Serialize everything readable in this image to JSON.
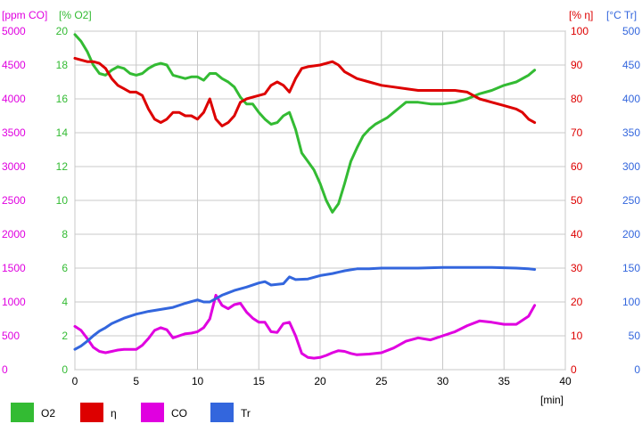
{
  "chart_data": {
    "type": "line",
    "xlabel": "[min]",
    "x_ticks": [
      "0",
      "5",
      "10",
      "15",
      "20",
      "25",
      "30",
      "35",
      "40"
    ],
    "xlim": [
      0,
      40
    ],
    "grid": true,
    "legend_position": "bottom",
    "axes": [
      {
        "id": "co",
        "label": "[ppm CO]",
        "side": "left-outer",
        "color": "#e000e0",
        "min": 0,
        "max": 5000,
        "ticks": [
          "0",
          "500",
          "1000",
          "1500",
          "2000",
          "2500",
          "3000",
          "3500",
          "4000",
          "4500",
          "5000"
        ]
      },
      {
        "id": "o2",
        "label": "[% O2]",
        "side": "left-inner",
        "color": "#33bb33",
        "min": 0,
        "max": 20,
        "ticks": [
          "0",
          "2",
          "4",
          "6",
          "8",
          "10",
          "12",
          "14",
          "16",
          "18",
          "20"
        ]
      },
      {
        "id": "eta",
        "label": "[% η]",
        "side": "right-inner",
        "color": "#dd0000",
        "min": 0,
        "max": 100,
        "ticks": [
          "0",
          "10",
          "20",
          "30",
          "40",
          "50",
          "60",
          "70",
          "80",
          "90",
          "100"
        ]
      },
      {
        "id": "tr",
        "label": "[°C Tr]",
        "side": "right-outer",
        "color": "#3366dd",
        "min": 0,
        "max": 500,
        "ticks": [
          "0",
          "50",
          "100",
          "150",
          "200",
          "250",
          "300",
          "350",
          "400",
          "450",
          "500"
        ]
      }
    ],
    "series": [
      {
        "name": "O2",
        "axis": "o2",
        "color": "#33bb33",
        "points": [
          [
            0,
            19.8
          ],
          [
            0.5,
            19.4
          ],
          [
            1,
            18.8
          ],
          [
            1.5,
            18.0
          ],
          [
            2,
            17.5
          ],
          [
            2.5,
            17.4
          ],
          [
            3,
            17.7
          ],
          [
            3.5,
            17.9
          ],
          [
            4,
            17.8
          ],
          [
            4.5,
            17.5
          ],
          [
            5,
            17.4
          ],
          [
            5.5,
            17.5
          ],
          [
            6,
            17.8
          ],
          [
            6.5,
            18.0
          ],
          [
            7,
            18.1
          ],
          [
            7.5,
            18.0
          ],
          [
            8,
            17.4
          ],
          [
            8.5,
            17.3
          ],
          [
            9,
            17.2
          ],
          [
            9.5,
            17.3
          ],
          [
            10,
            17.3
          ],
          [
            10.5,
            17.1
          ],
          [
            11,
            17.5
          ],
          [
            11.5,
            17.5
          ],
          [
            12,
            17.2
          ],
          [
            12.5,
            17.0
          ],
          [
            13,
            16.7
          ],
          [
            13.5,
            16.1
          ],
          [
            14,
            15.7
          ],
          [
            14.5,
            15.7
          ],
          [
            15,
            15.2
          ],
          [
            15.5,
            14.8
          ],
          [
            16,
            14.5
          ],
          [
            16.5,
            14.6
          ],
          [
            17,
            15.0
          ],
          [
            17.5,
            15.2
          ],
          [
            18,
            14.2
          ],
          [
            18.5,
            12.8
          ],
          [
            19,
            12.3
          ],
          [
            19.5,
            11.8
          ],
          [
            20,
            11.0
          ],
          [
            20.5,
            10.0
          ],
          [
            21,
            9.3
          ],
          [
            21.5,
            9.8
          ],
          [
            22,
            11.0
          ],
          [
            22.5,
            12.3
          ],
          [
            23,
            13.1
          ],
          [
            23.5,
            13.8
          ],
          [
            24,
            14.2
          ],
          [
            24.5,
            14.5
          ],
          [
            25,
            14.7
          ],
          [
            25.5,
            14.9
          ],
          [
            26,
            15.2
          ],
          [
            26.5,
            15.5
          ],
          [
            27,
            15.8
          ],
          [
            28,
            15.8
          ],
          [
            29,
            15.7
          ],
          [
            30,
            15.7
          ],
          [
            31,
            15.8
          ],
          [
            32,
            16.0
          ],
          [
            33,
            16.3
          ],
          [
            34,
            16.5
          ],
          [
            35,
            16.8
          ],
          [
            36,
            17.0
          ],
          [
            37,
            17.4
          ],
          [
            37.5,
            17.7
          ]
        ]
      },
      {
        "name": "η",
        "axis": "eta",
        "color": "#dd0000",
        "points": [
          [
            0,
            92
          ],
          [
            0.5,
            91.5
          ],
          [
            1,
            91
          ],
          [
            1.5,
            91
          ],
          [
            2,
            90.5
          ],
          [
            2.5,
            89
          ],
          [
            3,
            86
          ],
          [
            3.5,
            84
          ],
          [
            4,
            83
          ],
          [
            4.5,
            82
          ],
          [
            5,
            82
          ],
          [
            5.5,
            81
          ],
          [
            6,
            77
          ],
          [
            6.5,
            74
          ],
          [
            7,
            73
          ],
          [
            7.5,
            74
          ],
          [
            8,
            76
          ],
          [
            8.5,
            76
          ],
          [
            9,
            75
          ],
          [
            9.5,
            75
          ],
          [
            10,
            74
          ],
          [
            10.5,
            76
          ],
          [
            11,
            80
          ],
          [
            11.5,
            74
          ],
          [
            12,
            72
          ],
          [
            12.5,
            73
          ],
          [
            13,
            75
          ],
          [
            13.5,
            79
          ],
          [
            14,
            80
          ],
          [
            14.5,
            80.5
          ],
          [
            15,
            81
          ],
          [
            15.5,
            81.5
          ],
          [
            16,
            84
          ],
          [
            16.5,
            85
          ],
          [
            17,
            84
          ],
          [
            17.5,
            82
          ],
          [
            18,
            86
          ],
          [
            18.5,
            89
          ],
          [
            19,
            89.5
          ],
          [
            20,
            90
          ],
          [
            21,
            91
          ],
          [
            21.5,
            90
          ],
          [
            22,
            88
          ],
          [
            23,
            86
          ],
          [
            24,
            85
          ],
          [
            25,
            84
          ],
          [
            26,
            83.5
          ],
          [
            27,
            83
          ],
          [
            28,
            82.5
          ],
          [
            29,
            82.5
          ],
          [
            30,
            82.5
          ],
          [
            31,
            82.5
          ],
          [
            32,
            82
          ],
          [
            33,
            80
          ],
          [
            34,
            79
          ],
          [
            35,
            78
          ],
          [
            36,
            77
          ],
          [
            36.5,
            76
          ],
          [
            37,
            74
          ],
          [
            37.5,
            73
          ]
        ]
      },
      {
        "name": "CO",
        "axis": "co",
        "color": "#e000e0",
        "points": [
          [
            0,
            640
          ],
          [
            0.5,
            580
          ],
          [
            1,
            460
          ],
          [
            1.5,
            330
          ],
          [
            2,
            270
          ],
          [
            2.5,
            250
          ],
          [
            3,
            270
          ],
          [
            3.5,
            290
          ],
          [
            4,
            300
          ],
          [
            4.5,
            300
          ],
          [
            5,
            300
          ],
          [
            5.5,
            360
          ],
          [
            6,
            460
          ],
          [
            6.5,
            580
          ],
          [
            7,
            620
          ],
          [
            7.5,
            590
          ],
          [
            8,
            470
          ],
          [
            8.5,
            500
          ],
          [
            9,
            530
          ],
          [
            9.5,
            540
          ],
          [
            10,
            560
          ],
          [
            10.5,
            620
          ],
          [
            11,
            750
          ],
          [
            11.5,
            1100
          ],
          [
            12,
            950
          ],
          [
            12.5,
            900
          ],
          [
            13,
            960
          ],
          [
            13.5,
            980
          ],
          [
            14,
            850
          ],
          [
            14.5,
            760
          ],
          [
            15,
            700
          ],
          [
            15.5,
            700
          ],
          [
            16,
            560
          ],
          [
            16.5,
            550
          ],
          [
            17,
            680
          ],
          [
            17.5,
            700
          ],
          [
            18,
            500
          ],
          [
            18.5,
            240
          ],
          [
            19,
            180
          ],
          [
            19.5,
            170
          ],
          [
            20,
            180
          ],
          [
            20.5,
            210
          ],
          [
            21,
            250
          ],
          [
            21.5,
            280
          ],
          [
            22,
            270
          ],
          [
            22.5,
            240
          ],
          [
            23,
            220
          ],
          [
            24,
            230
          ],
          [
            25,
            250
          ],
          [
            26,
            320
          ],
          [
            27,
            420
          ],
          [
            28,
            470
          ],
          [
            29,
            440
          ],
          [
            30,
            500
          ],
          [
            31,
            560
          ],
          [
            32,
            650
          ],
          [
            33,
            720
          ],
          [
            34,
            700
          ],
          [
            35,
            670
          ],
          [
            36,
            670
          ],
          [
            37,
            790
          ],
          [
            37.5,
            950
          ]
        ]
      },
      {
        "name": "Tr",
        "axis": "tr",
        "color": "#3366dd",
        "points": [
          [
            0,
            30
          ],
          [
            0.5,
            35
          ],
          [
            1,
            42
          ],
          [
            1.5,
            50
          ],
          [
            2,
            57
          ],
          [
            2.5,
            62
          ],
          [
            3,
            68
          ],
          [
            4,
            76
          ],
          [
            5,
            82
          ],
          [
            5.5,
            84
          ],
          [
            6,
            86
          ],
          [
            7,
            89
          ],
          [
            8,
            92
          ],
          [
            9,
            98
          ],
          [
            10,
            103
          ],
          [
            10.5,
            100
          ],
          [
            11,
            100
          ],
          [
            12,
            110
          ],
          [
            13,
            117
          ],
          [
            14,
            122
          ],
          [
            15,
            128
          ],
          [
            15.5,
            130
          ],
          [
            16,
            125
          ],
          [
            17,
            127
          ],
          [
            17.5,
            137
          ],
          [
            18,
            133
          ],
          [
            19,
            134
          ],
          [
            20,
            139
          ],
          [
            21,
            142
          ],
          [
            22,
            146
          ],
          [
            23,
            149
          ],
          [
            24,
            149
          ],
          [
            25,
            150
          ],
          [
            26,
            150
          ],
          [
            27,
            150
          ],
          [
            28,
            150
          ],
          [
            30,
            151
          ],
          [
            32,
            151
          ],
          [
            34,
            151
          ],
          [
            36,
            150
          ],
          [
            37,
            149
          ],
          [
            37.5,
            148
          ]
        ]
      }
    ],
    "legend": [
      {
        "name": "O2",
        "color": "#33bb33"
      },
      {
        "name": "η",
        "color": "#dd0000"
      },
      {
        "name": "CO",
        "color": "#e000e0"
      },
      {
        "name": "Tr",
        "color": "#3366dd"
      }
    ]
  }
}
